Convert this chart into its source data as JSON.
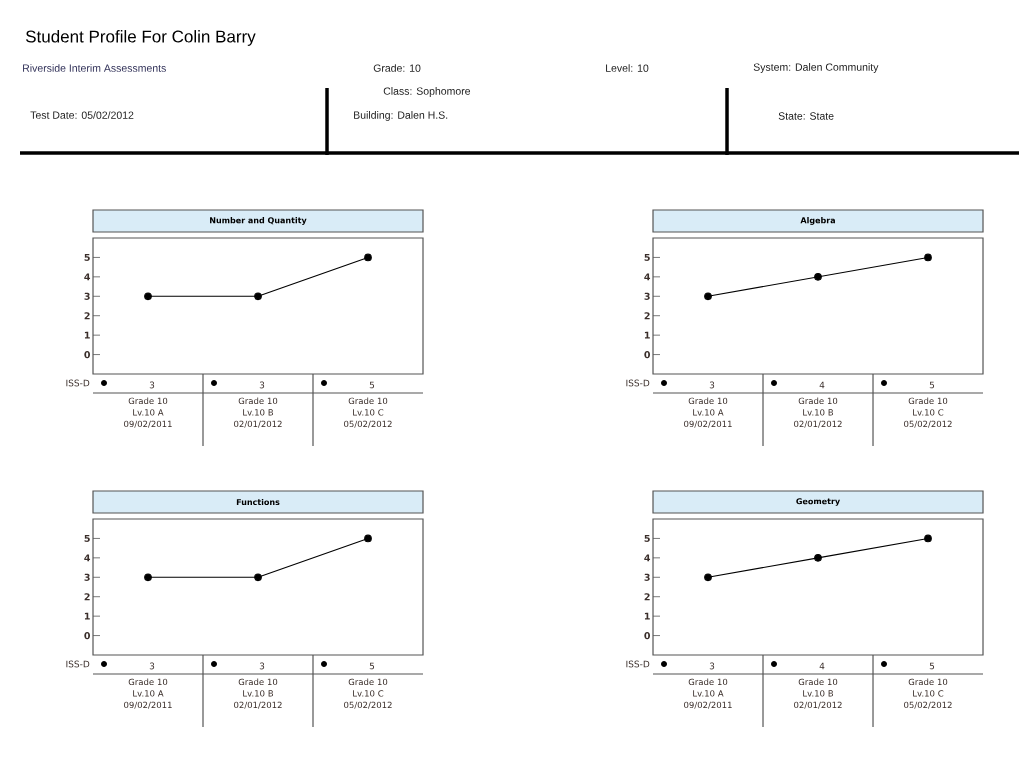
{
  "chart_data": [
    {
      "type": "other",
      "title": "Student Profile For  Colin Barry",
      "annotations": [
        "Riverside Interim Assessments",
        "Test Date:  05/02/2012",
        "Grade: 10",
        "Class: Sophomore",
        "Building: Dalen H.S.",
        "Level:   10",
        "System: Dalen Community",
        "State: State"
      ]
    },
    {
      "type": "line",
      "title": "Number and Quantity",
      "categories": [
        "Grade 10 Lv.10 A 09/02/2011",
        "Grade 10 Lv.10 B 02/01/2012",
        "Grade 10 Lv.10 C 05/02/2012"
      ],
      "values": [
        3,
        3,
        5
      ],
      "color": "#000000",
      "marker": "circle",
      "ylim": [
        -1,
        6
      ],
      "yticks": [
        0,
        1,
        2,
        3,
        4,
        5
      ],
      "data_labels": true,
      "annotations": [
        "ISS-D"
      ]
    },
    {
      "type": "line",
      "title": "Algebra",
      "categories": [
        "Grade 10 Lv.10 A 09/02/2011",
        "Grade 10 Lv.10 B 02/01/2012",
        "Grade 10 Lv.10 C 05/02/2012"
      ],
      "values": [
        3,
        4,
        5
      ],
      "color": "#000000",
      "marker": "circle",
      "ylim": [
        -1,
        6
      ],
      "yticks": [
        0,
        1,
        2,
        3,
        4,
        5
      ],
      "data_labels": true,
      "annotations": [
        "ISS-D"
      ]
    },
    {
      "type": "line",
      "title": "Functions",
      "categories": [
        "Grade 10 Lv.10 A 09/02/2011",
        "Grade 10 Lv.10 B 02/01/2012",
        "Grade 10 Lv.10 C 05/02/2012"
      ],
      "values": [
        3,
        3,
        5
      ],
      "color": "#000000",
      "marker": "circle",
      "ylim": [
        -1,
        6
      ],
      "yticks": [
        0,
        1,
        2,
        3,
        4,
        5
      ],
      "data_labels": true,
      "annotations": [
        "ISS-D"
      ]
    },
    {
      "type": "line",
      "title": "Geometry",
      "categories": [
        "Grade 10 Lv.10 A 09/02/2011",
        "Grade 10 Lv.10 B 02/01/2012",
        "Grade 10 Lv.10 C 05/02/2012"
      ],
      "values": [
        3,
        4,
        5
      ],
      "color": "#000000",
      "marker": "circle",
      "ylim": [
        -1,
        6
      ],
      "yticks": [
        0,
        1,
        2,
        3,
        4,
        5
      ],
      "data_labels": true,
      "annotations": [
        "ISS-D"
      ]
    }
  ]
}
